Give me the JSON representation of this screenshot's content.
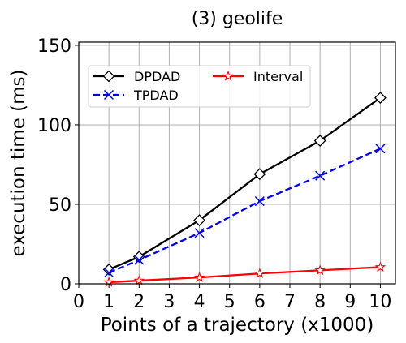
{
  "chart_data": {
    "type": "line",
    "title": "(3) geolife",
    "xlabel": "Points of a trajectory (x1000)",
    "ylabel": "execution time (ms)",
    "xlim": [
      0,
      10.5
    ],
    "ylim": [
      0,
      152
    ],
    "xticks": [
      0,
      1,
      2,
      3,
      4,
      5,
      6,
      7,
      8,
      9,
      10
    ],
    "yticks": [
      0,
      50,
      100,
      150
    ],
    "grid": true,
    "legend_position": "upper-left",
    "x": [
      1,
      2,
      4,
      6,
      8,
      10
    ],
    "series": [
      {
        "name": "DPDAD",
        "values": [
          9,
          17,
          40,
          69,
          90,
          117
        ],
        "color": "#000000",
        "linestyle": "solid",
        "marker": "diamond"
      },
      {
        "name": "TPDAD",
        "values": [
          7,
          15,
          32,
          52,
          68,
          85
        ],
        "color": "#0000ff",
        "linestyle": "dashed",
        "marker": "x"
      },
      {
        "name": "Interval",
        "values": [
          1,
          2,
          4,
          6.5,
          8.5,
          10.5
        ],
        "color": "#ff0000",
        "linestyle": "solid",
        "marker": "star"
      }
    ]
  }
}
